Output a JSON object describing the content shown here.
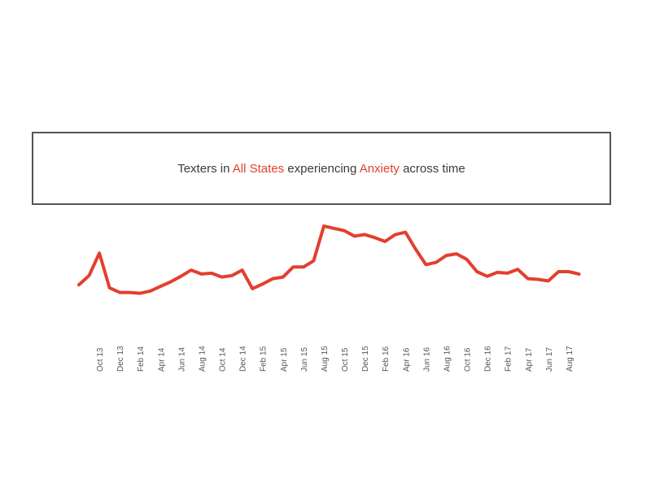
{
  "title": {
    "prefix": "Texters in ",
    "location": "All States",
    "middle": " experiencing ",
    "issue": "Anxiety",
    "suffix": " across time"
  },
  "colors": {
    "line": "#e2402f",
    "highlight": "#e2402f",
    "title_text": "#3b3b3b",
    "tick_text": "#555555",
    "border": "#555555"
  },
  "chart_data": {
    "type": "line",
    "title": "Texters in All States experiencing Anxiety across time",
    "xlabel": "",
    "ylabel": "",
    "grid": false,
    "y_axis_shown": false,
    "x_tick_labels": [
      "Oct 13",
      "Dec 13",
      "Feb 14",
      "Apr 14",
      "Jun 14",
      "Aug 14",
      "Oct 14",
      "Dec 14",
      "Feb 15",
      "Apr 15",
      "Jun 15",
      "Aug 15",
      "Oct 15",
      "Dec 15",
      "Feb 16",
      "Apr 16",
      "Jun 16",
      "Aug 16",
      "Oct 16",
      "Dec 16",
      "Feb 17",
      "Apr 17",
      "Jun 17",
      "Aug 17"
    ],
    "x": [
      "Aug 13",
      "Sep 13",
      "Oct 13",
      "Nov 13",
      "Dec 13",
      "Jan 14",
      "Feb 14",
      "Mar 14",
      "Apr 14",
      "May 14",
      "Jun 14",
      "Jul 14",
      "Aug 14",
      "Sep 14",
      "Oct 14",
      "Nov 14",
      "Dec 14",
      "Jan 15",
      "Feb 15",
      "Mar 15",
      "Apr 15",
      "May 15",
      "Jun 15",
      "Jul 15",
      "Aug 15",
      "Sep 15",
      "Oct 15",
      "Nov 15",
      "Dec 15",
      "Jan 16",
      "Feb 16",
      "Mar 16",
      "Apr 16",
      "May 16",
      "Jun 16",
      "Jul 16",
      "Aug 16",
      "Sep 16",
      "Oct 16",
      "Nov 16",
      "Dec 16",
      "Jan 17",
      "Feb 17",
      "Mar 17",
      "Apr 17",
      "May 17",
      "Jun 17",
      "Jul 17",
      "Aug 17",
      "Sep 17"
    ],
    "series": [
      {
        "values": [
          0.3,
          1.5,
          4.4,
          -0.1,
          -0.7,
          -0.7,
          -0.8,
          -0.5,
          0.1,
          0.7,
          1.4,
          2.2,
          1.7,
          1.8,
          1.3,
          1.5,
          2.2,
          -0.2,
          0.4,
          1.1,
          1.3,
          2.6,
          2.6,
          3.4,
          7.9,
          7.6,
          7.3,
          6.6,
          6.8,
          6.4,
          5.9,
          6.8,
          7.1,
          4.9,
          2.9,
          3.2,
          4.1,
          4.3,
          3.6,
          2.0,
          1.4,
          1.9,
          1.8,
          2.3,
          1.1,
          1.0,
          0.8,
          2.0,
          2.0,
          1.7
        ]
      }
    ]
  }
}
